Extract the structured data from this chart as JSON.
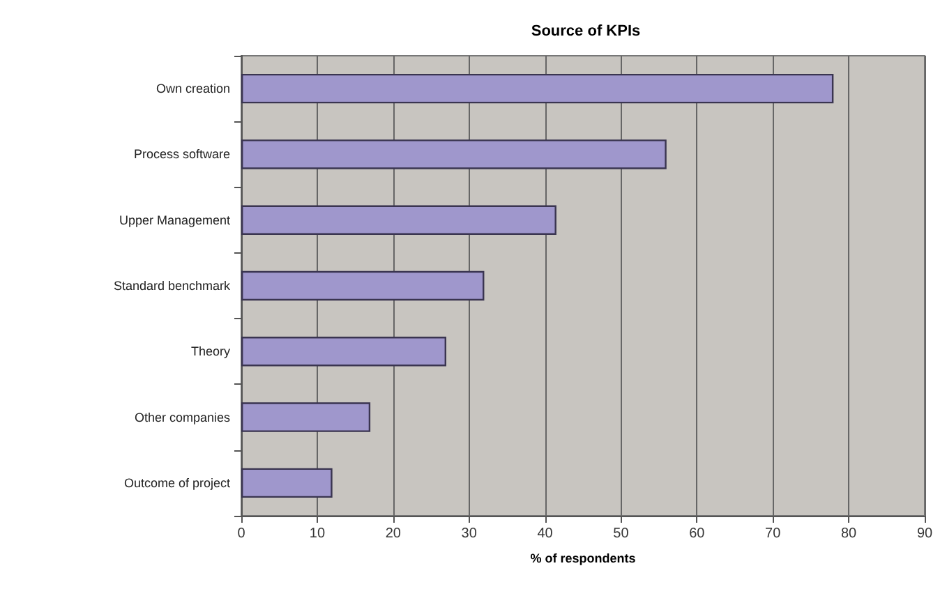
{
  "chart_data": {
    "type": "bar",
    "orientation": "horizontal",
    "title": "Source of KPIs",
    "xlabel": "% of respondents",
    "categories": [
      "Own creation",
      "Process software",
      "Upper Management",
      "Standard benchmark",
      "Theory",
      "Other companies",
      "Outcome of project"
    ],
    "values": [
      78,
      56,
      41.5,
      32,
      27,
      17,
      12
    ],
    "color": "#9f97cc",
    "xlim": [
      0,
      90
    ],
    "xticks": [
      0,
      10,
      20,
      30,
      40,
      50,
      60,
      70,
      80,
      90
    ],
    "grid": "x"
  }
}
